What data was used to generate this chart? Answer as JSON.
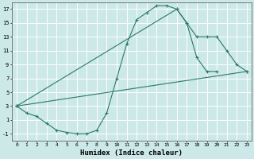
{
  "xlabel": "Humidex (Indice chaleur)",
  "bg_color": "#cce8e8",
  "grid_color": "#ffffff",
  "line_color": "#2a7a6a",
  "xlim": [
    -0.5,
    23.5
  ],
  "ylim": [
    -2,
    18
  ],
  "xticks": [
    0,
    1,
    2,
    3,
    4,
    5,
    6,
    7,
    8,
    9,
    10,
    11,
    12,
    13,
    14,
    15,
    16,
    17,
    18,
    19,
    20,
    21,
    22,
    23
  ],
  "yticks": [
    -1,
    1,
    3,
    5,
    7,
    9,
    11,
    13,
    15,
    17
  ],
  "line1_x": [
    0,
    1,
    2,
    3,
    4,
    5,
    6,
    7,
    8,
    9,
    10,
    11,
    12,
    13,
    14,
    15,
    16,
    17,
    18,
    19,
    20
  ],
  "line1_y": [
    3,
    2,
    1.5,
    0.5,
    -0.5,
    -0.8,
    -1.0,
    -1.0,
    -0.5,
    2,
    7,
    12,
    15.5,
    16.5,
    17.5,
    17.5,
    17,
    15,
    10,
    8,
    8
  ],
  "line2_x": [
    0,
    23
  ],
  "line2_y": [
    3,
    8
  ],
  "line3_x": [
    0,
    16,
    17,
    18,
    19,
    20,
    21,
    22,
    23
  ],
  "line3_y": [
    3,
    17,
    15,
    13,
    13,
    13,
    11,
    9,
    8
  ]
}
